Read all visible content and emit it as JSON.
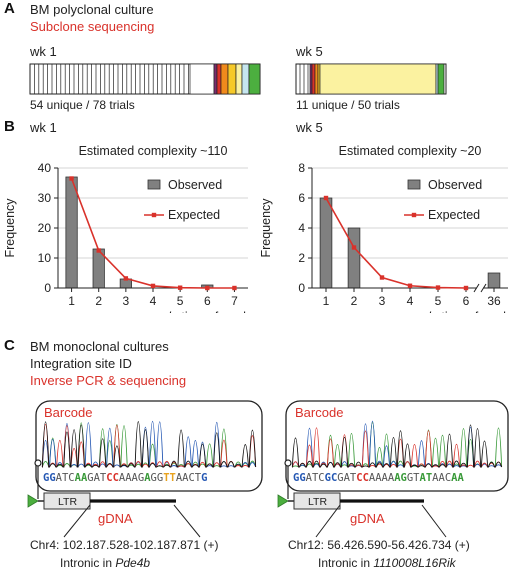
{
  "panel_a": {
    "letter": "A",
    "title": "BM polyclonal culture",
    "subtitle": "Subclone sequencing",
    "wk1": {
      "label": "wk 1",
      "caption": "54 unique / 78 trials"
    },
    "wk5": {
      "label": "wk 5",
      "caption": "11 unique / 50 trials"
    },
    "colors": {
      "purple": "#7b2d6e",
      "red": "#d9322b",
      "orange": "#f08a1c",
      "yellow": "#fbf2a0",
      "yellow_dark": "#f6c928",
      "lightblue": "#c6e6ef",
      "green": "#4caf3f"
    }
  },
  "panel_b": {
    "letter": "B",
    "wk1_label": "wk 1",
    "wk5_label": "wk 5"
  },
  "chart_data": [
    {
      "type": "bar",
      "title": "Estimated complexity ~110",
      "xlabel": "k, times found",
      "ylabel": "Frequency",
      "categories": [
        "1",
        "2",
        "3",
        "4",
        "5",
        "6",
        "7"
      ],
      "ylim": [
        0,
        40
      ],
      "yticks": [
        0,
        10,
        20,
        30,
        40
      ],
      "grid": true,
      "legend": "top-right",
      "series": [
        {
          "name": "Observed",
          "kind": "bar",
          "color": "#808080",
          "values": [
            37,
            13,
            3,
            0,
            0,
            1,
            0
          ]
        },
        {
          "name": "Expected",
          "kind": "line",
          "color": "#d9322b",
          "values": [
            36.5,
            12.5,
            3.2,
            0.7,
            0.1,
            0.0,
            0.0
          ]
        }
      ]
    },
    {
      "type": "bar",
      "title": "Estimated complexity ~20",
      "xlabel": "k, times found",
      "ylabel": "Frequency",
      "categories": [
        "1",
        "2",
        "3",
        "4",
        "5",
        "6",
        "36"
      ],
      "axis_break_between": [
        "6",
        "36"
      ],
      "ylim": [
        0,
        8
      ],
      "yticks": [
        0,
        2,
        4,
        6,
        8
      ],
      "grid": true,
      "legend": "top-right",
      "series": [
        {
          "name": "Observed",
          "kind": "bar",
          "color": "#808080",
          "values": [
            6,
            4,
            0,
            0,
            0,
            0,
            1
          ]
        },
        {
          "name": "Expected",
          "kind": "line",
          "color": "#d9322b",
          "values": [
            6.0,
            2.7,
            0.7,
            0.15,
            0.03,
            0.0,
            null
          ]
        }
      ]
    }
  ],
  "panel_c": {
    "letter": "C",
    "line1": "BM monoclonal cultures",
    "line2": "Integration site ID",
    "line3": "Inverse PCR & sequencing",
    "left": {
      "barcode_label": "Barcode",
      "sequence": [
        {
          "t": "GG",
          "c": "#2457b3",
          "b": true
        },
        {
          "t": "ATC",
          "c": "#555555",
          "b": false
        },
        {
          "t": "AA",
          "c": "#3a9a3a",
          "b": true
        },
        {
          "t": "GAT",
          "c": "#555555",
          "b": false
        },
        {
          "t": "CC",
          "c": "#d9322b",
          "b": true
        },
        {
          "t": "AAAG",
          "c": "#555555",
          "b": false
        },
        {
          "t": "A",
          "c": "#3a9a3a",
          "b": true
        },
        {
          "t": "GG",
          "c": "#555555",
          "b": false
        },
        {
          "t": "TT",
          "c": "#e8a21e",
          "b": true
        },
        {
          "t": "AACT",
          "c": "#555555",
          "b": false
        },
        {
          "t": "G",
          "c": "#2457b3",
          "b": true
        }
      ],
      "ltr": "LTR",
      "gdna": "gDNA",
      "coord": "Chr4: 102.187.528-102.187.871 (+)",
      "intronic_prefix": "Intronic in ",
      "gene": "Pde4b"
    },
    "right": {
      "barcode_label": "Barcode",
      "sequence": [
        {
          "t": "GG",
          "c": "#2457b3",
          "b": true
        },
        {
          "t": "ATC",
          "c": "#555555",
          "b": false
        },
        {
          "t": "GC",
          "c": "#2457b3",
          "b": true
        },
        {
          "t": "GAT",
          "c": "#555555",
          "b": false
        },
        {
          "t": "CC",
          "c": "#d9322b",
          "b": true
        },
        {
          "t": "AAAA",
          "c": "#555555",
          "b": false
        },
        {
          "t": "AG",
          "c": "#3a9a3a",
          "b": true
        },
        {
          "t": "GT",
          "c": "#555555",
          "b": false
        },
        {
          "t": "AT",
          "c": "#3a9a3a",
          "b": true
        },
        {
          "t": "AAC",
          "c": "#555555",
          "b": false
        },
        {
          "t": "AA",
          "c": "#3a9a3a",
          "b": true
        }
      ],
      "ltr": "LTR",
      "gdna": "gDNA",
      "coord": "Chr12: 56.426.590-56.426.734 (+)",
      "intronic_prefix": "Intronic in ",
      "gene": "1110008L16Rik"
    }
  }
}
